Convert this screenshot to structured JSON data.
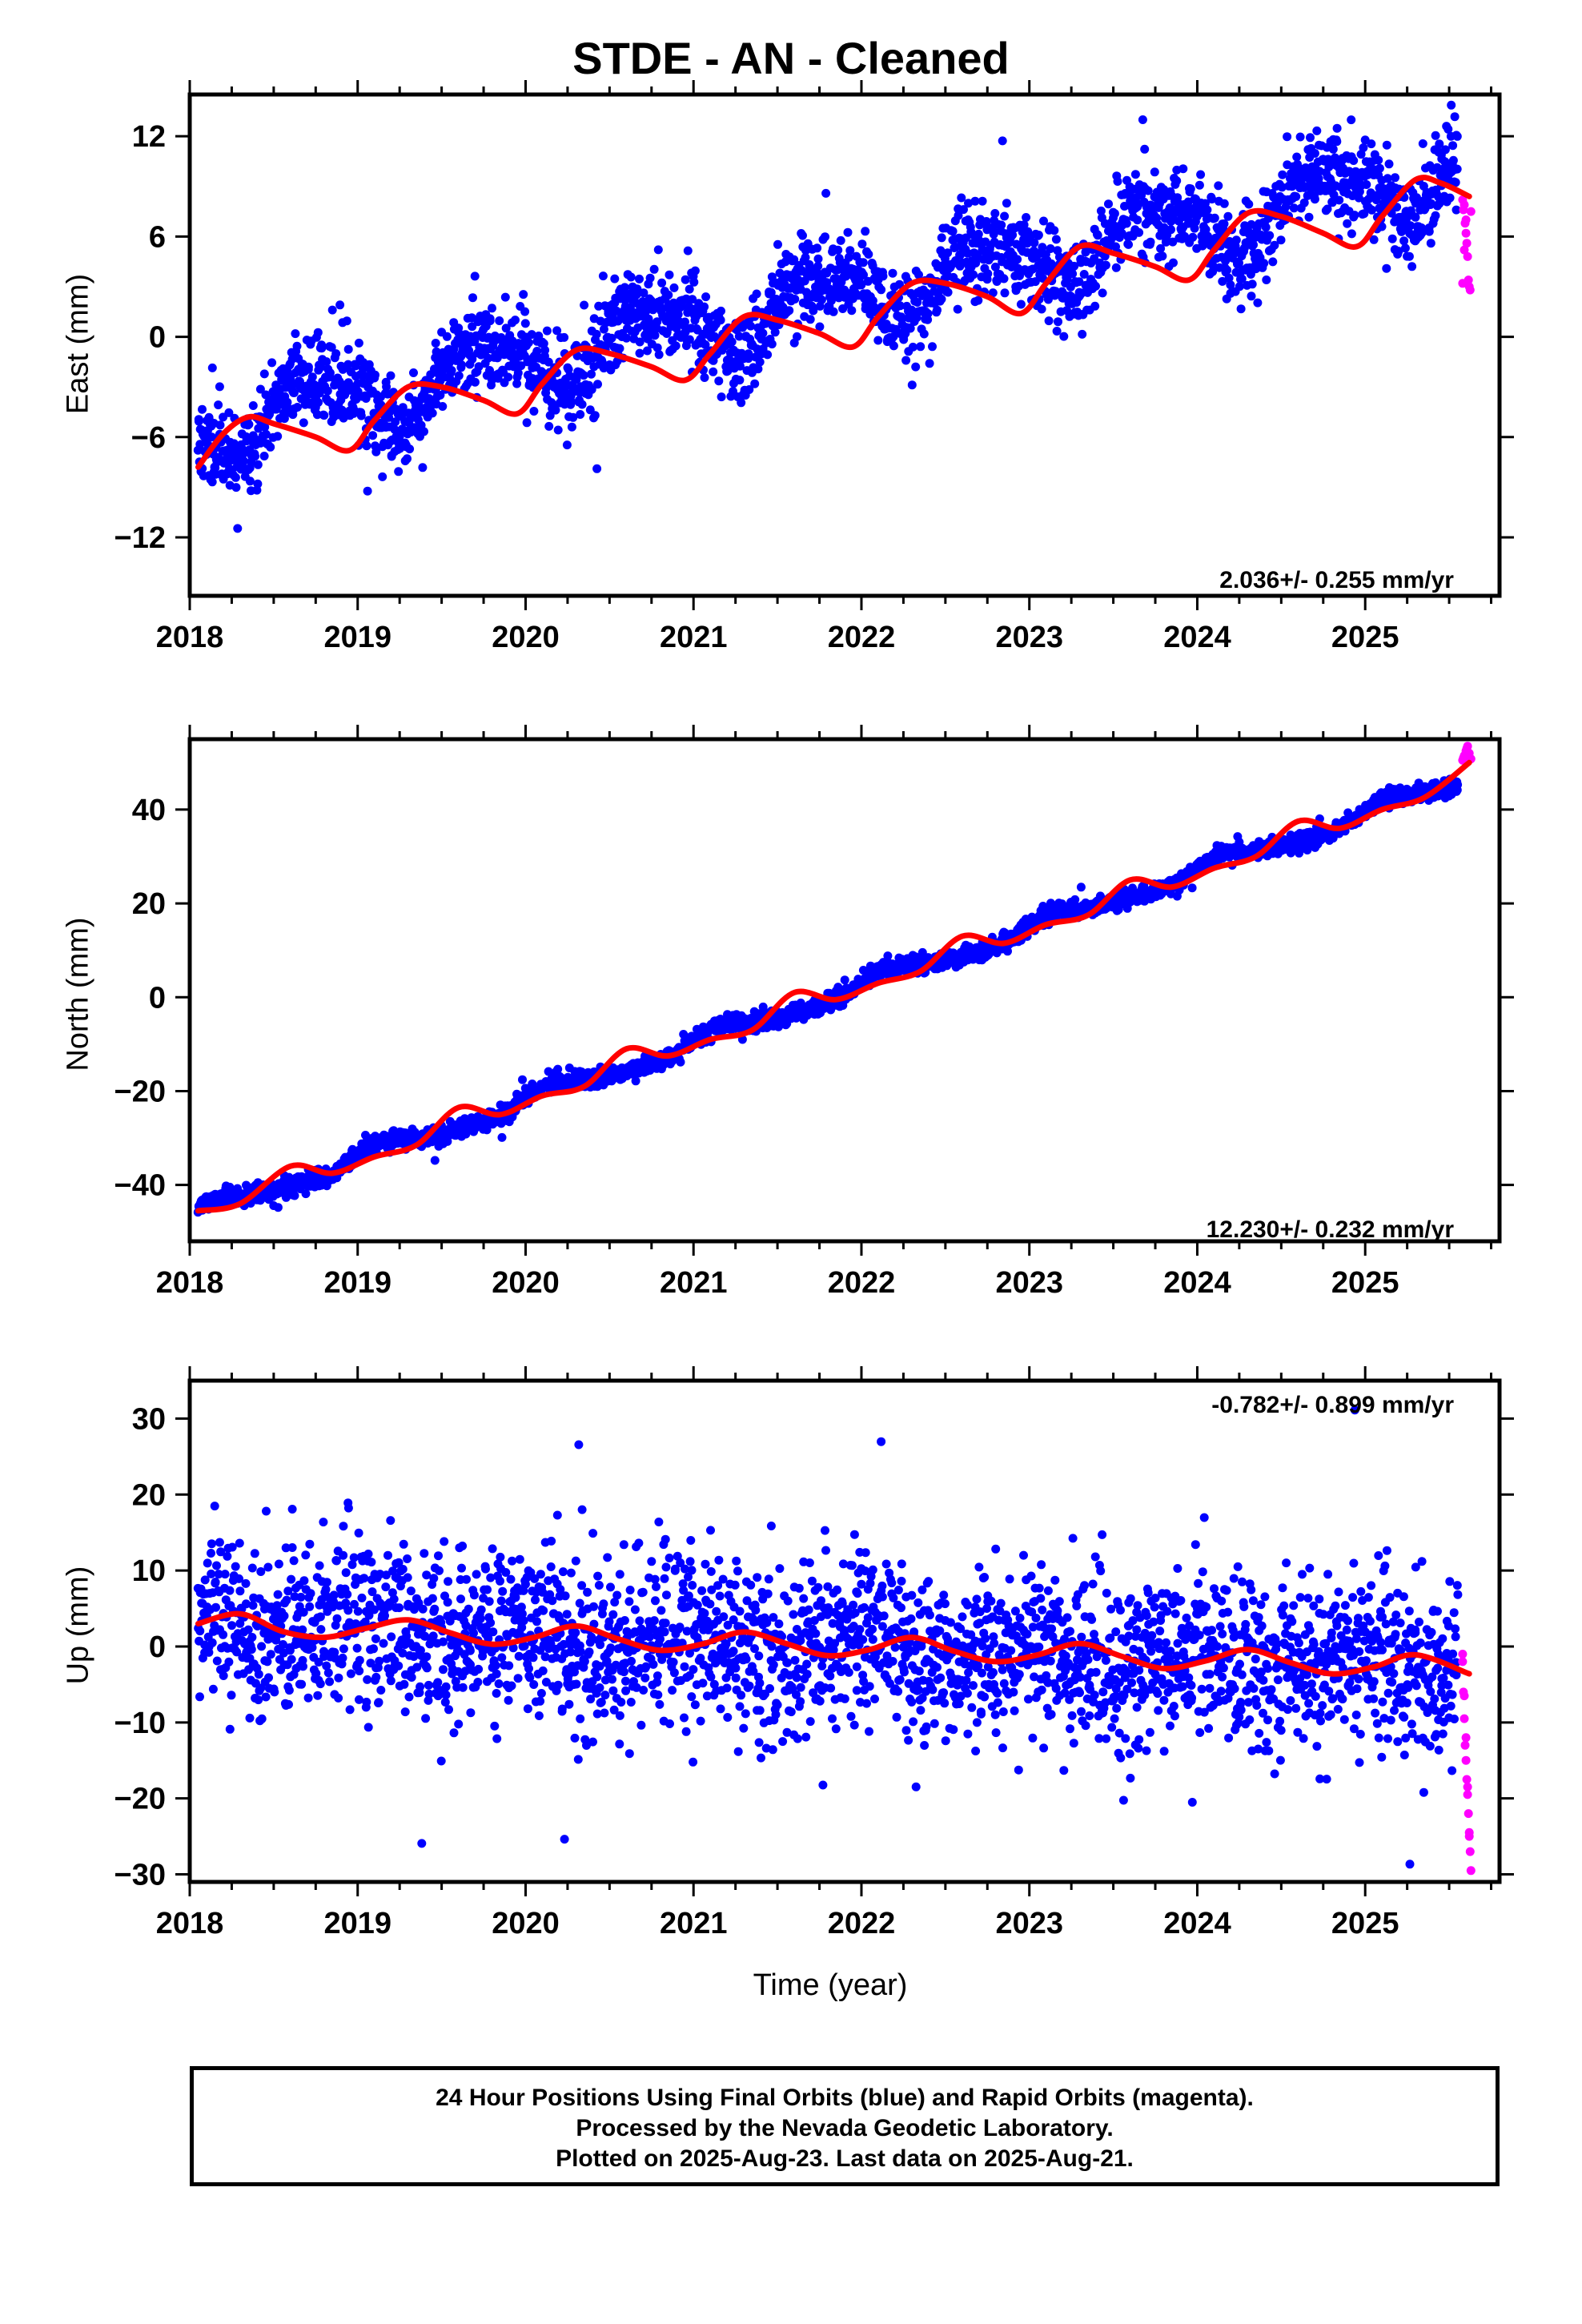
{
  "title": "STDE  - AN - Cleaned",
  "footer": {
    "line1": "24 Hour Positions Using Final Orbits (blue) and Rapid Orbits (magenta).",
    "line2": "Processed by the Nevada Geodetic Laboratory.",
    "line3": "Plotted on 2025-Aug-23. Last data on 2025-Aug-21."
  },
  "colors": {
    "final": "#0000ff",
    "rapid": "#ff00ff",
    "model": "#ff0000",
    "axis": "#000000"
  },
  "chart_data": [
    {
      "type": "scatter",
      "ylabel": "East (mm)",
      "xlabel": "",
      "rate_label": "2.036+/- 0.255 mm/yr",
      "xlim": [
        2018.0,
        2025.8
      ],
      "ylim": [
        -15.5,
        14.5
      ],
      "xticks": [
        2018,
        2019,
        2020,
        2021,
        2022,
        2023,
        2024,
        2025
      ],
      "xtick_labels": [
        "2018",
        "2019",
        "2020",
        "2021",
        "2022",
        "2023",
        "2024",
        "2025"
      ],
      "yticks": [
        -12,
        -6,
        0,
        6,
        12
      ],
      "ytick_labels": [
        "−12",
        "−6",
        "0",
        "6",
        "12"
      ],
      "series": [
        {
          "role": "final-orbits",
          "color": "#0000ff",
          "model": {
            "intercept": -5.5,
            "slope": 2.036,
            "amp_annual": 1.8,
            "phase_annual": 3.2,
            "amp_semi": 0.6,
            "phase_semi": 1.0,
            "offsets": [
              [
                2021.3,
                0.0
              ]
            ],
            "noise_sd": 1.3
          },
          "range": [
            2018.05,
            2025.55
          ],
          "count": 2600,
          "seed": 11
        },
        {
          "role": "rapid-orbits",
          "color": "#ff00ff",
          "x": [
            2025.58,
            2025.585,
            2025.59,
            2025.595,
            2025.6,
            2025.605,
            2025.61,
            2025.615,
            2025.62,
            2025.625,
            2025.63,
            2025.58,
            2025.59,
            2025.6
          ],
          "y": [
            8.2,
            7.6,
            7.9,
            6.8,
            6.2,
            5.6,
            4.8,
            3.4,
            3.0,
            2.8,
            7.5,
            3.2,
            5.2,
            7.0
          ]
        }
      ],
      "fit": {
        "color": "#ff0000",
        "x": [
          2018.05,
          2018.2,
          2018.35,
          2018.5,
          2018.75,
          2018.95,
          2019.1,
          2019.3,
          2019.5,
          2019.75,
          2019.95,
          2020.1,
          2020.3,
          2020.5,
          2020.75,
          2020.95,
          2021.1,
          2021.3,
          2021.5,
          2021.75,
          2021.95,
          2022.1,
          2022.3,
          2022.5,
          2022.75,
          2022.95,
          2023.1,
          2023.3,
          2023.5,
          2023.75,
          2023.95,
          2024.1,
          2024.3,
          2024.5,
          2024.75,
          2024.95,
          2025.1,
          2025.3,
          2025.45,
          2025.62
        ],
        "y": [
          -7.8,
          -5.8,
          -4.8,
          -5.2,
          -6.0,
          -6.8,
          -5.0,
          -3.0,
          -3.0,
          -3.8,
          -4.6,
          -2.8,
          -0.8,
          -1.0,
          -1.8,
          -2.6,
          -1.0,
          1.2,
          1.0,
          0.2,
          -0.6,
          1.2,
          3.2,
          3.2,
          2.4,
          1.4,
          3.2,
          5.4,
          5.0,
          4.2,
          3.4,
          5.2,
          7.4,
          7.2,
          6.2,
          5.4,
          7.2,
          9.4,
          9.2,
          8.4
        ]
      }
    },
    {
      "type": "scatter",
      "ylabel": "North (mm)",
      "xlabel": "",
      "rate_label": "12.230+/- 0.232 mm/yr",
      "xlim": [
        2018.0,
        2025.8
      ],
      "ylim": [
        -52,
        55
      ],
      "xticks": [
        2018,
        2019,
        2020,
        2021,
        2022,
        2023,
        2024,
        2025
      ],
      "xtick_labels": [
        "2018",
        "2019",
        "2020",
        "2021",
        "2022",
        "2023",
        "2024",
        "2025"
      ],
      "yticks": [
        -40,
        -20,
        0,
        20,
        40
      ],
      "ytick_labels": [
        "−40",
        "−20",
        "0",
        "20",
        "40"
      ],
      "series": [
        {
          "role": "final-orbits",
          "color": "#0000ff",
          "model": {
            "intercept": -46.0,
            "slope": 12.23,
            "amp_annual": 1.5,
            "phase_annual": 0.5,
            "amp_semi": 0.4,
            "phase_semi": 0.2,
            "offsets": [],
            "noise_sd": 0.9
          },
          "range": [
            2018.05,
            2025.55
          ],
          "count": 2600,
          "seed": 23
        },
        {
          "role": "rapid-orbits",
          "color": "#ff00ff",
          "x": [
            2025.58,
            2025.59,
            2025.6,
            2025.61,
            2025.62,
            2025.63,
            2025.585,
            2025.605
          ],
          "y": [
            50.5,
            51.5,
            52.5,
            53.5,
            52.0,
            50.8,
            51.0,
            53.0
          ]
        }
      ],
      "fit": {
        "color": "#ff0000",
        "x": [
          2018.05,
          2018.3,
          2018.6,
          2018.85,
          2019.1,
          2019.35,
          2019.6,
          2019.85,
          2020.1,
          2020.35,
          2020.6,
          2020.85,
          2021.1,
          2021.35,
          2021.6,
          2021.85,
          2022.1,
          2022.35,
          2022.6,
          2022.85,
          2023.1,
          2023.35,
          2023.6,
          2023.85,
          2024.1,
          2024.35,
          2024.6,
          2024.85,
          2025.1,
          2025.35,
          2025.62
        ],
        "y": [
          -45.5,
          -44.0,
          -36.0,
          -37.5,
          -34.0,
          -31.5,
          -23.5,
          -25.0,
          -21.0,
          -19.0,
          -11.0,
          -12.5,
          -9.0,
          -7.0,
          1.0,
          -0.5,
          3.0,
          5.5,
          13.0,
          11.5,
          15.5,
          17.5,
          25.0,
          23.5,
          27.5,
          30.0,
          37.5,
          36.0,
          40.0,
          42.5,
          50.0
        ]
      }
    },
    {
      "type": "scatter",
      "ylabel": "Up (mm)",
      "xlabel": "Time (year)",
      "rate_label": "-0.782+/- 0.899 mm/yr",
      "xlim": [
        2018.0,
        2025.8
      ],
      "ylim": [
        -31,
        35
      ],
      "xticks": [
        2018,
        2019,
        2020,
        2021,
        2022,
        2023,
        2024,
        2025
      ],
      "xtick_labels": [
        "2018",
        "2019",
        "2020",
        "2021",
        "2022",
        "2023",
        "2024",
        "2025"
      ],
      "yticks": [
        -30,
        -20,
        -10,
        0,
        10,
        20,
        30
      ],
      "ytick_labels": [
        "−30",
        "−20",
        "−10",
        "0",
        "10",
        "20",
        "30"
      ],
      "series": [
        {
          "role": "final-orbits",
          "color": "#0000ff",
          "model": {
            "intercept": 3.0,
            "slope": -0.782,
            "amp_annual": 1.5,
            "phase_annual": 1.6,
            "amp_semi": 0.3,
            "phase_semi": 0.4,
            "offsets": [],
            "noise_sd": 5.5
          },
          "range": [
            2018.05,
            2025.55
          ],
          "count": 2600,
          "seed": 37
        },
        {
          "role": "rapid-orbits",
          "color": "#ff00ff",
          "x": [
            2025.58,
            2025.585,
            2025.59,
            2025.595,
            2025.6,
            2025.605,
            2025.61,
            2025.615,
            2025.62,
            2025.625,
            2025.63,
            2025.58,
            2025.59,
            2025.6,
            2025.61,
            2025.62
          ],
          "y": [
            -2.0,
            -6.0,
            -9.5,
            -13.0,
            -15.0,
            -17.5,
            -19.5,
            -22.0,
            -24.5,
            -27.0,
            -29.5,
            -1.0,
            -6.5,
            -12.0,
            -18.5,
            -25.0
          ]
        }
      ],
      "fit": {
        "color": "#ff0000",
        "x": [
          2018.05,
          2018.3,
          2018.55,
          2018.8,
          2019.05,
          2019.3,
          2019.55,
          2019.8,
          2020.05,
          2020.3,
          2020.55,
          2020.8,
          2021.05,
          2021.3,
          2021.55,
          2021.8,
          2022.05,
          2022.3,
          2022.55,
          2022.8,
          2023.05,
          2023.3,
          2023.55,
          2023.8,
          2024.05,
          2024.3,
          2024.55,
          2024.8,
          2025.05,
          2025.3,
          2025.62
        ],
        "y": [
          3.0,
          4.3,
          2.0,
          1.2,
          2.4,
          3.5,
          1.8,
          0.3,
          1.2,
          2.7,
          1.0,
          -0.5,
          0.3,
          1.9,
          0.4,
          -1.2,
          -0.4,
          1.2,
          -0.6,
          -2.0,
          -1.1,
          0.4,
          -1.3,
          -2.9,
          -1.9,
          -0.4,
          -2.1,
          -3.6,
          -2.7,
          -1.1,
          -3.6
        ]
      }
    }
  ]
}
